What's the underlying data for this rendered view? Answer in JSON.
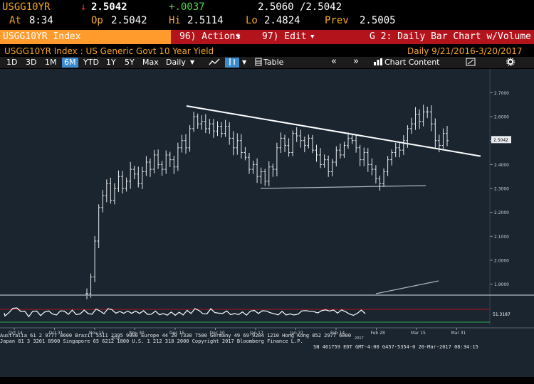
{
  "header": {
    "ticker": "USGG10YR",
    "arrow": "↓",
    "last": "2.5042",
    "change": "+.0037",
    "bid_ask": "2.5060 /2.5042",
    "time_label": "At",
    "time": "8:34",
    "open_label": "Op",
    "open": "2.5042",
    "high_label": "Hi",
    "high": "2.5114",
    "low_label": "Lo",
    "low": "2.4824",
    "prev_label": "Prev",
    "prev": "2.5005"
  },
  "command_bar": {
    "security": "USGG10YR Index",
    "actions": "96) Actions",
    "edit": "97) Edit",
    "chart_title": "G 2: Daily Bar Chart w/Volume"
  },
  "subtitle": {
    "description": "USGG10YR Index : US Generic Govt 10 Year Yield",
    "range": "Daily   9/21/2016-3/20/2017"
  },
  "toolbar": {
    "periods": [
      "1D",
      "3D",
      "1M",
      "6M",
      "YTD",
      "1Y",
      "5Y",
      "Max"
    ],
    "active_period": "6M",
    "frequency": "Daily",
    "table": "Table",
    "chart_content": "Chart Content"
  },
  "chart_data": {
    "type": "bar",
    "title": "",
    "ylim": [
      1.86,
      2.74
    ],
    "yticks": [
      "2.7000",
      "2.6000",
      "2.5000",
      "2.4000",
      "2.3000",
      "2.2000",
      "2.1000",
      "2.0000",
      "1.9000"
    ],
    "last_value_label": "2.5042",
    "xticks": [
      "Oct 14",
      "Oct 31",
      "Nov 15",
      "Nov 30",
      "Dec 15",
      "Dec 30",
      "Jan 17",
      "Jan 31",
      "Feb 14",
      "Feb 28",
      "Mar 15",
      "Mar 31"
    ],
    "year_labels": [
      "2016",
      "2017"
    ],
    "daily_close": [
      1.86,
      1.93,
      2.08,
      2.22,
      2.27,
      2.32,
      2.25,
      2.3,
      2.35,
      2.3,
      2.33,
      2.38,
      2.36,
      2.32,
      2.37,
      2.41,
      2.38,
      2.44,
      2.4,
      2.38,
      2.44,
      2.42,
      2.39,
      2.47,
      2.5,
      2.47,
      2.55,
      2.6,
      2.57,
      2.58,
      2.55,
      2.57,
      2.54,
      2.56,
      2.53,
      2.56,
      2.51,
      2.47,
      2.5,
      2.45,
      2.43,
      2.38,
      2.4,
      2.35,
      2.37,
      2.33,
      2.39,
      2.38,
      2.47,
      2.51,
      2.48,
      2.45,
      2.53,
      2.52,
      2.5,
      2.48,
      2.51,
      2.46,
      2.44,
      2.4,
      2.42,
      2.37,
      2.41,
      2.46,
      2.44,
      2.48,
      2.51,
      2.5,
      2.47,
      2.42,
      2.45,
      2.4,
      2.38,
      2.34,
      2.32,
      2.37,
      2.42,
      2.45,
      2.47,
      2.46,
      2.5,
      2.55,
      2.57,
      2.61,
      2.58,
      2.62,
      2.62,
      2.57,
      2.5,
      2.48,
      2.53,
      2.5
    ],
    "rsi_label": "51.3187"
  },
  "footer": {
    "line1": "Australia 61 2 9777 8600 Brazil 5511 2395 9000 Europe 44 20 7330 7500 Germany 49 69 9204 1210 Hong Kong 852 2977 6000",
    "line2": "Japan 81 3 3201 8900          Singapore 65 6212 1000      U.S. 1 212 318 2000           Copyright 2017 Bloomberg Finance L.P.",
    "line3": "SN 461759 EDT  GMT-4:00 G457-5354-0 20-Mar-2017 08:34:15"
  },
  "colors": {
    "background": "#000000",
    "chart_bg": "#1a2530",
    "orange": "#ff9b2c",
    "red": "#b3141c",
    "amber": "#f5a623",
    "active_blue": "#3b8bd1"
  }
}
